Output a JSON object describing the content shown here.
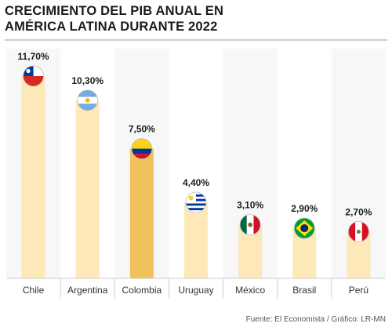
{
  "title": {
    "line1": "CRECIMIENTO DEL PIB ANUAL EN",
    "line2": "AMÉRICA LATINA DURANTE 2022"
  },
  "source": "Fuente: El Economista / Gráfico: LR-MN",
  "colors": {
    "bar": "#fde9b8",
    "highlight": "#efc25b",
    "column_shade": "#f7f7f7",
    "divider": "#cfcfcf",
    "text": "#1b1b1b"
  },
  "chart_data": {
    "type": "bar",
    "title": "CRECIMIENTO DEL PIB ANUAL EN AMÉRICA LATINA DURANTE 2022",
    "categories": [
      "Chile",
      "Argentina",
      "Colombia",
      "Uruguay",
      "México",
      "Brasil",
      "Perú"
    ],
    "values": [
      11.7,
      10.3,
      7.5,
      4.4,
      3.1,
      2.9,
      2.7
    ],
    "value_labels": [
      "11,70%",
      "10,30%",
      "7,50%",
      "4,40%",
      "3,10%",
      "2,90%",
      "2,70%"
    ],
    "flags": [
      "chile-flag-icon",
      "argentina-flag-icon",
      "colombia-flag-icon",
      "uruguay-flag-icon",
      "mexico-flag-icon",
      "brazil-flag-icon",
      "peru-flag-icon"
    ],
    "highlighted_category": "Colombia",
    "ylim": [
      0,
      11.7
    ],
    "grid": false,
    "legend": "none"
  }
}
